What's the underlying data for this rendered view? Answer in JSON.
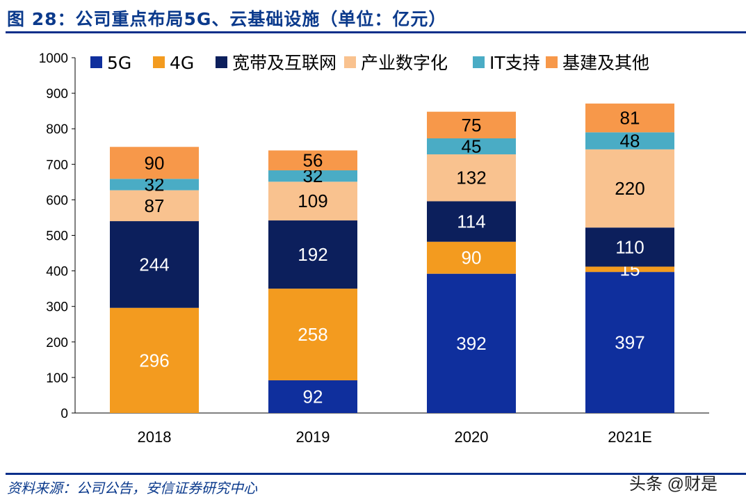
{
  "header": {
    "title": "图 28：公司重点布局5G、云基础设施（单位：亿元）"
  },
  "footer": {
    "source": "资料来源：公司公告，安信证券研究中心",
    "watermark": "头条 @财是"
  },
  "chart_data": {
    "type": "bar",
    "stacked": true,
    "title": "",
    "xlabel": "",
    "ylabel": "",
    "ylim": [
      0,
      1000
    ],
    "yticks": [
      0,
      100,
      200,
      300,
      400,
      500,
      600,
      700,
      800,
      900,
      1000
    ],
    "categories": [
      "2018",
      "2019",
      "2020",
      "2021E"
    ],
    "legend_position": "top",
    "grid": false,
    "series": [
      {
        "name": "5G",
        "color": "#0f2f9d",
        "label_color": "#ffffff",
        "values": [
          0,
          92,
          392,
          397
        ]
      },
      {
        "name": "4G",
        "color": "#f39b1f",
        "label_color": "#ffffff",
        "values": [
          296,
          258,
          90,
          15
        ]
      },
      {
        "name": "宽带及互联网",
        "color": "#0c1f5c",
        "label_color": "#ffffff",
        "values": [
          244,
          192,
          114,
          110
        ]
      },
      {
        "name": "产业数字化",
        "color": "#f9c28f",
        "label_color": "#000000",
        "values": [
          87,
          109,
          132,
          220
        ]
      },
      {
        "name": "IT支持",
        "color": "#4aacc5",
        "label_color": "#000000",
        "values": [
          32,
          32,
          45,
          48
        ]
      },
      {
        "name": "基建及其他",
        "color": "#f7984a",
        "label_color": "#000000",
        "values": [
          90,
          56,
          75,
          81
        ]
      }
    ]
  }
}
